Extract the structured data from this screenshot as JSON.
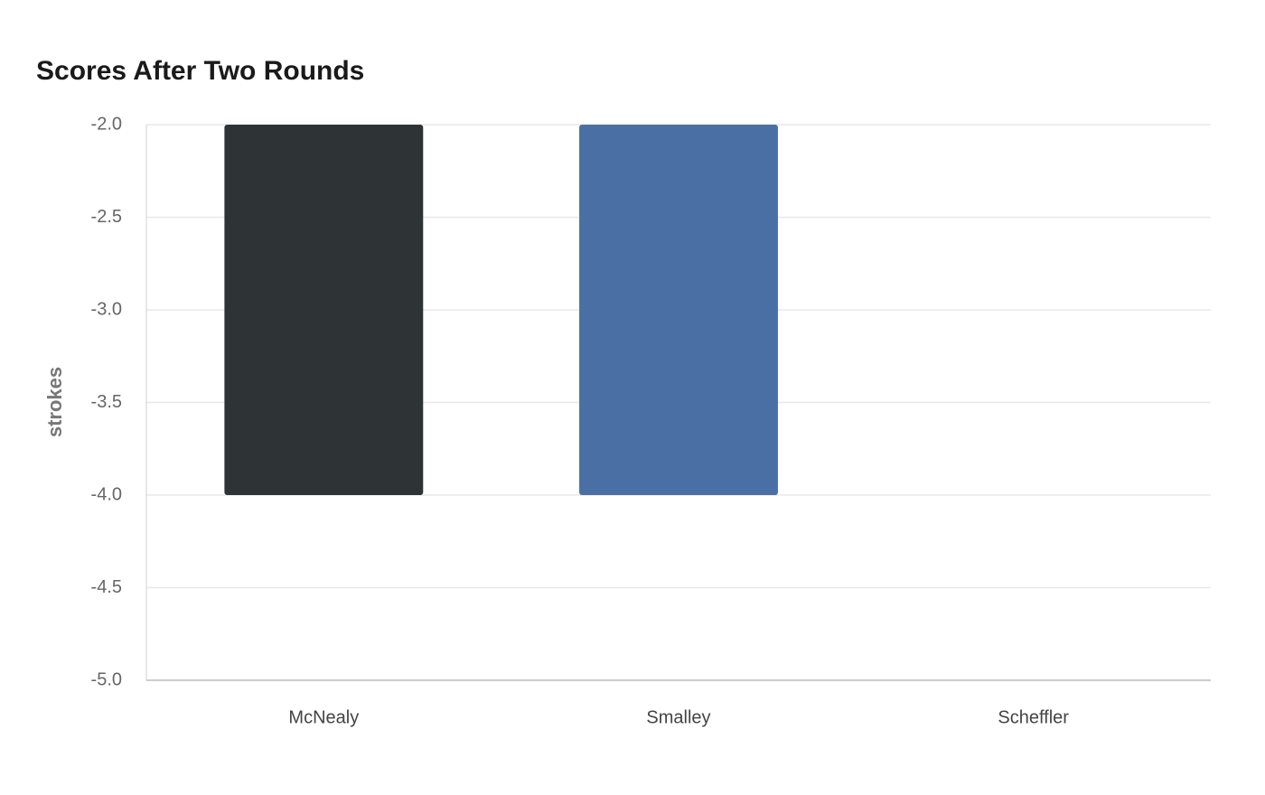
{
  "chart_data": {
    "type": "bar",
    "title": "Scores After Two Rounds",
    "y_label": "strokes",
    "categories": [
      "McNealy",
      "Smalley",
      "Scheffler"
    ],
    "values": [
      -4,
      -4,
      -2
    ],
    "colors": [
      "#2e3436",
      "#4a6fa5",
      "#4a6fa5"
    ],
    "ylim": [
      -5,
      -2
    ],
    "yticks": [
      {
        "value": -5,
        "label": "-5.0"
      },
      {
        "value": -4.5,
        "label": "-4.5"
      },
      {
        "value": -4,
        "label": "-4.0"
      },
      {
        "value": -3.5,
        "label": "-3.5"
      },
      {
        "value": -3,
        "label": "-3.0"
      },
      {
        "value": -2.5,
        "label": "-2.5"
      },
      {
        "value": -2,
        "label": "-2.0"
      }
    ],
    "grid": true
  }
}
